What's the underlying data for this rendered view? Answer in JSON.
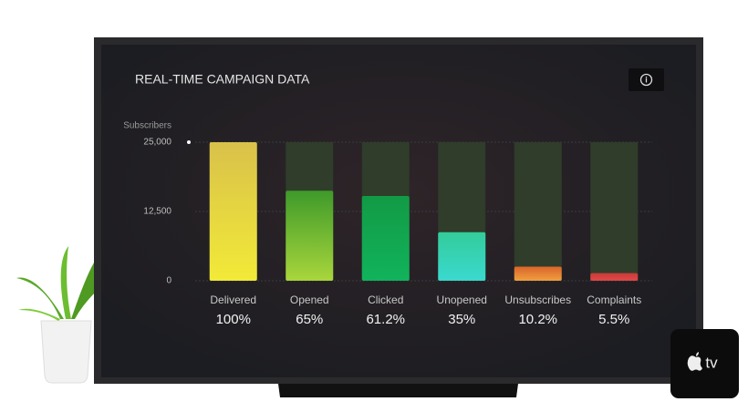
{
  "chart_data": {
    "type": "bar",
    "title": "REAL-TIME CAMPAIGN DATA",
    "y_label": "Subscribers",
    "categories": [
      "Delivered",
      "Opened",
      "Clicked",
      "Unopened",
      "Unsubscribes",
      "Complaints"
    ],
    "values": [
      25000,
      16250,
      15300,
      8750,
      2550,
      1375
    ],
    "value_labels": [
      "100%",
      "65%",
      "61.2%",
      "35%",
      "10.2%",
      "5.5%"
    ],
    "colors": [
      [
        "#d9c14a",
        "#f2ea38"
      ],
      [
        "#3e9a2a",
        "#a9d63c"
      ],
      [
        "#129a45",
        "#11b35c"
      ],
      [
        "#33cc9a",
        "#3ad9cf"
      ],
      [
        "#d9642a",
        "#f0a040"
      ],
      [
        "#c83a3a",
        "#e04848"
      ]
    ],
    "ylim": [
      0,
      25000
    ],
    "yticks": [
      {
        "value": 0,
        "label": "0"
      },
      {
        "value": 12500,
        "label": "12,500"
      },
      {
        "value": 25000,
        "label": "25,000"
      }
    ],
    "grid": true
  },
  "info_icon": "i",
  "device_label": "tv"
}
